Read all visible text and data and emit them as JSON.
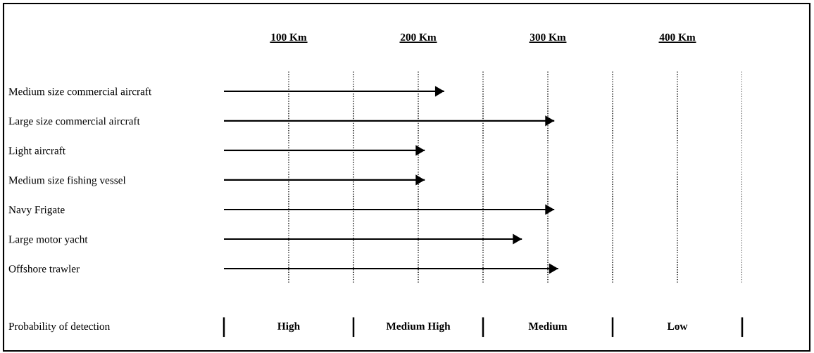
{
  "chart_data": {
    "type": "bar",
    "orientation": "horizontal",
    "marker": "triangle",
    "categories": [
      "Medium size commercial aircraft",
      "Large size commercial aircraft",
      "Light aircraft",
      "Medium size fishing vessel",
      "Navy Frigate",
      "Large motor yacht",
      "Offshore trawler"
    ],
    "base": [
      50,
      50,
      50,
      50,
      50,
      50,
      50
    ],
    "values": [
      170,
      255,
      155,
      155,
      255,
      230,
      258
    ],
    "color": "#000000",
    "xlim": [
      50,
      450
    ],
    "xticks": [
      {
        "value": 100,
        "label": "100 Km"
      },
      {
        "value": 150,
        "label": null
      },
      {
        "value": 200,
        "label": "200 Km"
      },
      {
        "value": 250,
        "label": null
      },
      {
        "value": 300,
        "label": "300 Km"
      },
      {
        "value": 350,
        "label": null
      },
      {
        "value": 400,
        "label": "400 Km"
      },
      {
        "value": 450,
        "label": null
      }
    ],
    "grid": "x",
    "annotations": [
      "Probability of detection",
      "High",
      "Medium High",
      "Medium",
      "Low"
    ]
  }
}
